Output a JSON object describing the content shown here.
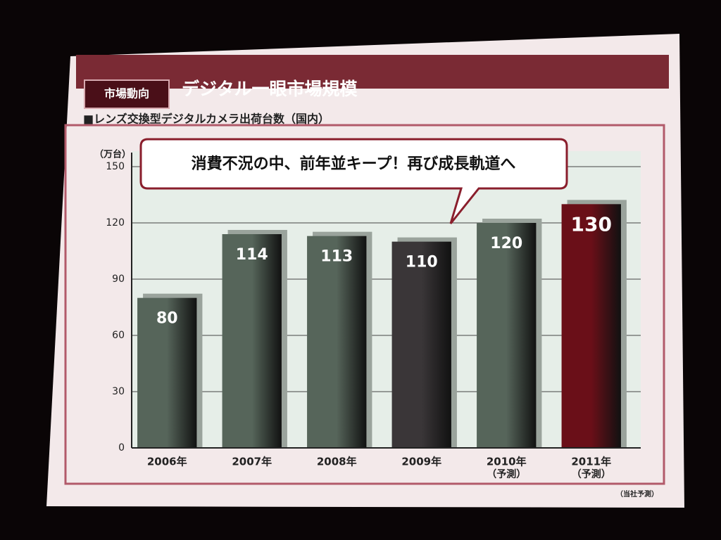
{
  "header": {
    "tag": "市場動向",
    "title": "デジタル一眼市場規模"
  },
  "chart_data": {
    "type": "bar",
    "title": "■レンズ交換型デジタルカメラ出荷台数（国内）",
    "y_label": "（万台）",
    "annotation": "消費不況の中、前年並キープ！再び成長軌道へ",
    "categories": [
      "2006年",
      "2007年",
      "2008年",
      "2009年",
      "2010年",
      "2011年"
    ],
    "category_notes": [
      null,
      null,
      null,
      null,
      "（予測）",
      "（予測）"
    ],
    "values": [
      80,
      114,
      113,
      110,
      120,
      130
    ],
    "colors": [
      "#56655a",
      "#56655a",
      "#56655a",
      "#3a3638",
      "#56655a",
      "#6a0f18"
    ],
    "ylim": [
      0,
      150
    ],
    "yticks": [
      0,
      30,
      60,
      90,
      120,
      150
    ],
    "grid": true,
    "footnote": "（当社予測）"
  }
}
